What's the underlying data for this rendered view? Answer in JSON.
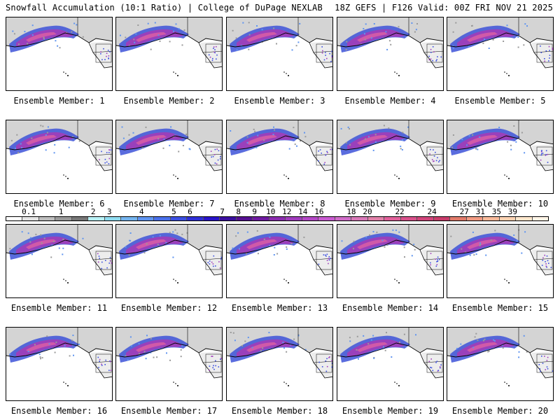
{
  "header": {
    "left_title": "Snowfall Accumulation (10:1 Ratio) | College of DuPage NEXLAB",
    "right_title": "18Z GEFS | F126 Valid: 00Z FRI NOV 21 2025"
  },
  "panels": [
    {
      "caption": "Ensemble Member: 1"
    },
    {
      "caption": "Ensemble Member: 2"
    },
    {
      "caption": "Ensemble Member: 3"
    },
    {
      "caption": "Ensemble Member: 4"
    },
    {
      "caption": "Ensemble Member: 5"
    },
    {
      "caption": "Ensemble Member: 6"
    },
    {
      "caption": "Ensemble Member: 7"
    },
    {
      "caption": "Ensemble Member: 8"
    },
    {
      "caption": "Ensemble Member: 9"
    },
    {
      "caption": "Ensemble Member: 10"
    },
    {
      "caption": "Ensemble Member: 11"
    },
    {
      "caption": "Ensemble Member: 12"
    },
    {
      "caption": "Ensemble Member: 13"
    },
    {
      "caption": "Ensemble Member: 14"
    },
    {
      "caption": "Ensemble Member: 15"
    },
    {
      "caption": "Ensemble Member: 16"
    },
    {
      "caption": "Ensemble Member: 17"
    },
    {
      "caption": "Ensemble Member: 18"
    },
    {
      "caption": "Ensemble Member: 19"
    },
    {
      "caption": "Ensemble Member: 20"
    }
  ],
  "colorbar": {
    "labels": [
      "0.1",
      "1",
      "2",
      "3",
      "4",
      "5",
      "6",
      "7",
      "8",
      "9",
      "10",
      "12",
      "14",
      "16",
      "18",
      "20",
      "22",
      "24",
      "27",
      "31",
      "35",
      "39"
    ],
    "colors": [
      "#ffffff",
      "#e4e4e4",
      "#bdbdbd",
      "#9a9a9a",
      "#777777",
      "#b8f0f5",
      "#8fdcf0",
      "#74b4ee",
      "#5f94f0",
      "#4a70ea",
      "#3b4ee0",
      "#2f2fd6",
      "#2a14c8",
      "#3a0f9e",
      "#551090",
      "#6e1aa0",
      "#8a2cae",
      "#a03cbc",
      "#b448c6",
      "#c85ad0",
      "#d06cc8",
      "#d878b8",
      "#e080a8",
      "#e0609a",
      "#d8508a",
      "#d0457a",
      "#c83c6a",
      "#e07a6a",
      "#f09a82",
      "#f8b99a",
      "#fcd2b2",
      "#fee6cc",
      "#fff4e6"
    ]
  }
}
